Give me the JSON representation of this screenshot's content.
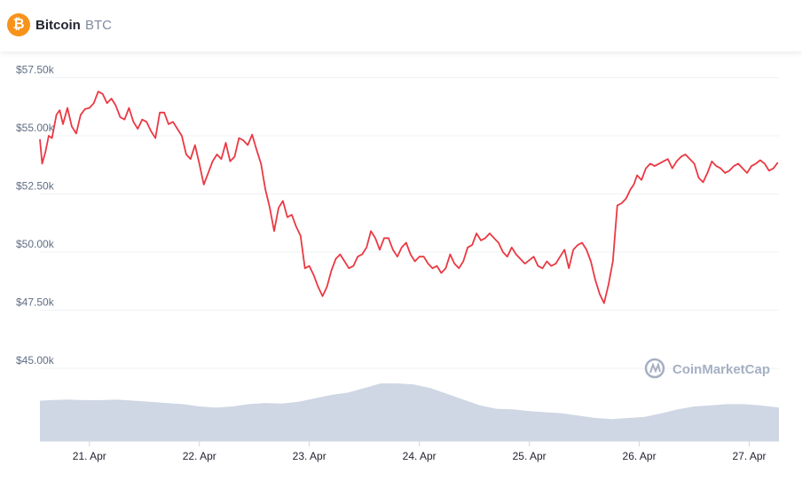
{
  "header": {
    "icon": "bitcoin-icon",
    "name": "Bitcoin",
    "symbol": "BTC",
    "icon_color": "#f7931a"
  },
  "watermark": {
    "text": "CoinMarketCap"
  },
  "colors": {
    "line": "#ea3943",
    "volume": "#cfd6e4",
    "grid": "#eff2f5"
  },
  "chart_data": {
    "type": "line",
    "title": "",
    "xlabel": "",
    "ylabel": "",
    "ylim": [
      43000,
      58000
    ],
    "ytick_values": [
      45000,
      47500,
      50000,
      52500,
      55000,
      57500
    ],
    "ytick_labels": [
      "$45.00k",
      "$47.50k",
      "$50.00k",
      "$52.50k",
      "$55.00k",
      "$57.50k"
    ],
    "xtick_labels": [
      "21. Apr",
      "22. Apr",
      "23. Apr",
      "24. Apr",
      "25. Apr",
      "26. Apr",
      "27. Apr"
    ],
    "xtick_values": [
      21,
      22,
      23,
      24,
      25,
      26,
      27
    ],
    "xlim": [
      20.55,
      27.27
    ],
    "grid": true,
    "series": [
      {
        "type": "line",
        "x": [
          20.55,
          20.57,
          20.6,
          20.63,
          20.66,
          20.7,
          20.73,
          20.76,
          20.8,
          20.84,
          20.88,
          20.92,
          20.96,
          21.0,
          21.04,
          21.08,
          21.12,
          21.16,
          21.2,
          21.24,
          21.28,
          21.32,
          21.36,
          21.4,
          21.44,
          21.48,
          21.52,
          21.56,
          21.6,
          21.64,
          21.68,
          21.72,
          21.76,
          21.8,
          21.84,
          21.88,
          21.92,
          21.96,
          22.0,
          22.04,
          22.08,
          22.12,
          22.16,
          22.2,
          22.24,
          22.28,
          22.32,
          22.36,
          22.4,
          22.44,
          22.48,
          22.52,
          22.56,
          22.6,
          22.64,
          22.68,
          22.72,
          22.76,
          22.8,
          22.84,
          22.88,
          22.92,
          22.96,
          23.0,
          23.04,
          23.08,
          23.12,
          23.16,
          23.2,
          23.24,
          23.28,
          23.32,
          23.36,
          23.4,
          23.44,
          23.48,
          23.52,
          23.56,
          23.6,
          23.64,
          23.68,
          23.72,
          23.76,
          23.8,
          23.84,
          23.88,
          23.92,
          23.96,
          24.0,
          24.04,
          24.08,
          24.12,
          24.16,
          24.2,
          24.24,
          24.28,
          24.32,
          24.36,
          24.4,
          24.44,
          24.48,
          24.52,
          24.56,
          24.6,
          24.64,
          24.68,
          24.72,
          24.76,
          24.8,
          24.84,
          24.88,
          24.92,
          24.96,
          25.0,
          25.04,
          25.08,
          25.12,
          25.16,
          25.2,
          25.24,
          25.28,
          25.32,
          25.36,
          25.4,
          25.44,
          25.48,
          25.52,
          25.56,
          25.6,
          25.64,
          25.68,
          25.72,
          25.76,
          25.8,
          25.84,
          25.88,
          25.92,
          25.95,
          25.98,
          26.02,
          26.06,
          26.1,
          26.14,
          26.18,
          26.22,
          26.26,
          26.3,
          26.34,
          26.38,
          26.42,
          26.46,
          26.5,
          26.54,
          26.58,
          26.62,
          26.66,
          26.7,
          26.74,
          26.78,
          26.82,
          26.86,
          26.9,
          26.94,
          26.98,
          27.02,
          27.06,
          27.1,
          27.14,
          27.18,
          27.22,
          27.26
        ],
        "y": [
          54850,
          53800,
          54300,
          55000,
          54900,
          55900,
          56100,
          55500,
          56200,
          55400,
          55100,
          55900,
          56150,
          56200,
          56400,
          56900,
          56800,
          56400,
          56600,
          56300,
          55800,
          55700,
          56200,
          55600,
          55300,
          55700,
          55600,
          55200,
          54900,
          56000,
          56000,
          55500,
          55600,
          55300,
          55000,
          54200,
          54000,
          54600,
          53800,
          52900,
          53400,
          53900,
          54200,
          54000,
          54700,
          53900,
          54100,
          54900,
          54800,
          54600,
          55050,
          54400,
          53800,
          52700,
          51900,
          50900,
          51900,
          52200,
          51500,
          51600,
          51100,
          50700,
          49300,
          49400,
          49000,
          48500,
          48100,
          48500,
          49200,
          49700,
          49900,
          49600,
          49300,
          49400,
          49800,
          49900,
          50200,
          50900,
          50600,
          50100,
          50600,
          50600,
          50100,
          49800,
          50200,
          50400,
          49900,
          49600,
          49800,
          49800,
          49500,
          49300,
          49400,
          49100,
          49300,
          49900,
          49500,
          49300,
          49600,
          50200,
          50300,
          50800,
          50500,
          50600,
          50800,
          50600,
          50400,
          50000,
          49800,
          50200,
          49900,
          49700,
          49500,
          49650,
          49800,
          49400,
          49300,
          49600,
          49400,
          49500,
          49800,
          50100,
          49300,
          50100,
          50300,
          50400,
          50100,
          49600,
          48800,
          48200,
          47800,
          48600,
          49600,
          52000,
          52100,
          52300,
          52700,
          52900,
          53300,
          53100,
          53600,
          53800,
          53700,
          53800,
          53900,
          54000,
          53600,
          53900,
          54100,
          54200,
          54000,
          53800,
          53200,
          53000,
          53400,
          53900,
          53700,
          53600,
          53400,
          53500,
          53700,
          53800,
          53600,
          53400,
          53700,
          53800,
          53950,
          53800,
          53500,
          53600,
          53850
        ]
      },
      {
        "type": "area",
        "name": "",
        "x": [
          20.55,
          20.65,
          20.8,
          20.95,
          21.1,
          21.25,
          21.4,
          21.55,
          21.7,
          21.85,
          22.0,
          22.15,
          22.3,
          22.45,
          22.6,
          22.75,
          22.9,
          23.05,
          23.2,
          23.35,
          23.5,
          23.65,
          23.8,
          23.95,
          24.1,
          24.25,
          24.4,
          24.55,
          24.7,
          24.85,
          25.0,
          25.15,
          25.3,
          25.45,
          25.6,
          25.75,
          25.9,
          26.05,
          26.2,
          26.35,
          26.5,
          26.65,
          26.8,
          26.95,
          27.1,
          27.27
        ],
        "y": [
          0.7,
          0.71,
          0.72,
          0.71,
          0.71,
          0.72,
          0.7,
          0.68,
          0.66,
          0.64,
          0.6,
          0.58,
          0.6,
          0.64,
          0.66,
          0.65,
          0.68,
          0.74,
          0.8,
          0.84,
          0.92,
          1.0,
          1.0,
          0.98,
          0.92,
          0.82,
          0.72,
          0.62,
          0.56,
          0.55,
          0.52,
          0.5,
          0.48,
          0.44,
          0.4,
          0.38,
          0.4,
          0.42,
          0.48,
          0.55,
          0.6,
          0.62,
          0.64,
          0.64,
          0.62,
          0.58
        ]
      }
    ]
  }
}
